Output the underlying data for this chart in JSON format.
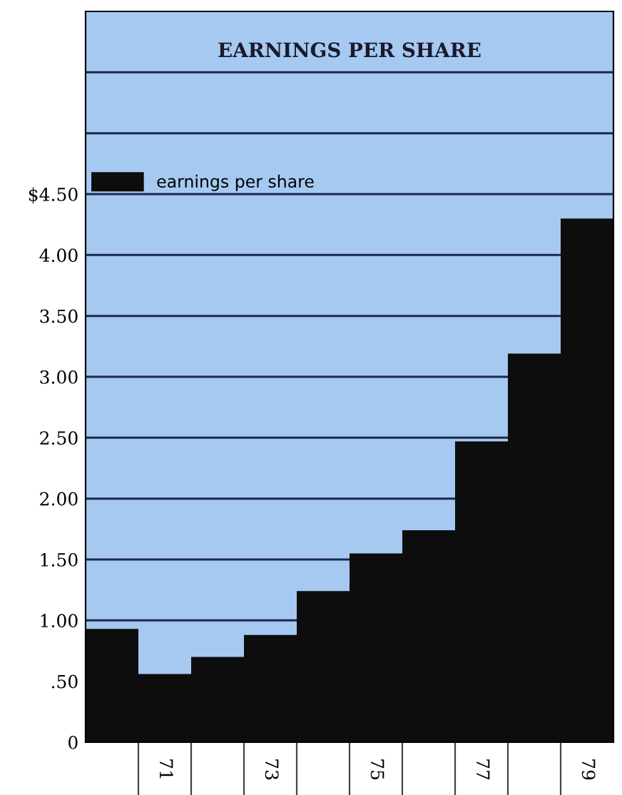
{
  "chart_data": {
    "type": "bar",
    "title": "EARNINGS PER SHARE",
    "categories": [
      null,
      "71",
      null,
      "73",
      null,
      "75",
      null,
      "77",
      null,
      "79"
    ],
    "series": [
      {
        "name": "earnings per share",
        "color": "#0d0d0d",
        "values": [
          0.93,
          0.56,
          0.7,
          0.88,
          1.24,
          1.55,
          1.74,
          2.47,
          3.19,
          4.3
        ]
      }
    ],
    "ylim": [
      0,
      6
    ],
    "yticks": [
      {
        "value": 0,
        "label": "0"
      },
      {
        "value": 0.5,
        "label": ".50"
      },
      {
        "value": 1,
        "label": "1.00"
      },
      {
        "value": 1.5,
        "label": "1.50"
      },
      {
        "value": 2,
        "label": "2.00"
      },
      {
        "value": 2.5,
        "label": "2.50"
      },
      {
        "value": 3,
        "label": "3.00"
      },
      {
        "value": 3.5,
        "label": "3.50"
      },
      {
        "value": 4,
        "label": "4.00"
      },
      {
        "value": 4.5,
        "label": "$4.50"
      },
      {
        "value": 5,
        "label": null
      },
      {
        "value": 5.5,
        "label": null
      }
    ],
    "grid": "y",
    "legend": "top left"
  }
}
